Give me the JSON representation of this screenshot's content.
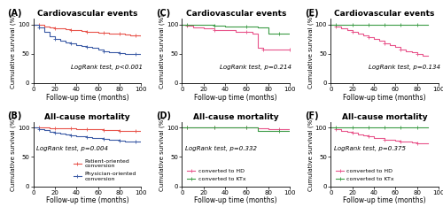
{
  "chart_data": [
    {
      "type": "step",
      "panel_label": "(A)",
      "title": "Cardiovascular events",
      "annotation": "LogRank test, p<0.001",
      "xlabel": "Follow-up time (months)",
      "ylabel": "Cumulative survival (%)",
      "xlim": [
        0,
        100
      ],
      "ylim": [
        0,
        110
      ],
      "xticks": [
        0,
        20,
        40,
        60,
        80,
        100
      ],
      "yticks": [
        0,
        50,
        100
      ],
      "series": [
        {
          "color": "#e8534a",
          "marker": "plus",
          "x": [
            0,
            5,
            10,
            15,
            20,
            25,
            30,
            35,
            40,
            45,
            50,
            55,
            60,
            65,
            70,
            75,
            80,
            85,
            90,
            95,
            100
          ],
          "values": [
            100,
            99,
            97,
            95,
            94,
            93,
            92,
            91,
            90,
            89,
            88,
            87,
            86,
            86,
            85,
            85,
            84,
            83,
            82,
            81,
            80
          ]
        },
        {
          "color": "#3b5ba5",
          "marker": "plus",
          "x": [
            0,
            5,
            10,
            15,
            20,
            25,
            30,
            35,
            40,
            45,
            50,
            55,
            60,
            65,
            70,
            75,
            80,
            85,
            90,
            95,
            100
          ],
          "values": [
            100,
            95,
            88,
            80,
            75,
            72,
            70,
            68,
            65,
            63,
            62,
            60,
            57,
            55,
            53,
            52,
            51,
            50,
            50,
            50,
            50
          ]
        }
      ]
    },
    {
      "type": "step",
      "panel_label": "(C)",
      "title": "Cardiovascular events",
      "annotation": "LogRank test, p=0.214",
      "xlabel": "Follow-up time (months)",
      "ylabel": "Cumulative survival (%)",
      "xlim": [
        0,
        100
      ],
      "ylim": [
        0,
        110
      ],
      "xticks": [
        0,
        20,
        40,
        60,
        80,
        100
      ],
      "yticks": [
        0,
        50,
        100
      ],
      "series": [
        {
          "color": "#e8538a",
          "marker": "plus",
          "x": [
            0,
            5,
            10,
            20,
            30,
            40,
            50,
            60,
            65,
            70,
            75,
            80,
            90,
            100
          ],
          "values": [
            100,
            98,
            95,
            93,
            91,
            90,
            88,
            87,
            85,
            60,
            58,
            57,
            57,
            57
          ]
        },
        {
          "color": "#3b9b45",
          "marker": "plus",
          "x": [
            0,
            5,
            10,
            20,
            30,
            40,
            50,
            60,
            70,
            80,
            90,
            100
          ],
          "values": [
            100,
            100,
            99,
            99,
            98,
            97,
            97,
            96,
            95,
            85,
            85,
            85
          ]
        }
      ]
    },
    {
      "type": "step",
      "panel_label": "(E)",
      "title": "Cardiovascular events",
      "annotation": "LogRank test, p=0.134",
      "xlabel": "Follow-up time (months)",
      "ylabel": "Cumulative survival (%)",
      "xlim": [
        0,
        100
      ],
      "ylim": [
        0,
        110
      ],
      "xticks": [
        0,
        20,
        40,
        60,
        80,
        100
      ],
      "yticks": [
        0,
        50,
        100
      ],
      "series": [
        {
          "color": "#e8538a",
          "marker": "plus",
          "x": [
            0,
            5,
            10,
            15,
            20,
            25,
            30,
            35,
            40,
            45,
            50,
            55,
            60,
            65,
            70,
            75,
            80,
            85,
            90
          ],
          "values": [
            100,
            97,
            93,
            90,
            87,
            85,
            82,
            78,
            75,
            72,
            68,
            65,
            62,
            58,
            55,
            52,
            49,
            47,
            46
          ]
        },
        {
          "color": "#3b9b45",
          "marker": "plus",
          "x": [
            0,
            5,
            10,
            15,
            20,
            25,
            30,
            35,
            40,
            45,
            50,
            55,
            60,
            65,
            70,
            75,
            80,
            85,
            90
          ],
          "values": [
            100,
            100,
            100,
            100,
            100,
            100,
            100,
            100,
            100,
            100,
            100,
            100,
            100,
            100,
            100,
            100,
            100,
            100,
            100
          ]
        }
      ]
    },
    {
      "type": "step",
      "panel_label": "(B)",
      "title": "All-cause mortality",
      "annotation": "LogRank test, p=0.004",
      "xlabel": "Follow-up time (months)",
      "ylabel": "Cumulative survival (%)",
      "xlim": [
        0,
        100
      ],
      "ylim": [
        0,
        110
      ],
      "xticks": [
        0,
        20,
        40,
        60,
        80,
        100
      ],
      "yticks": [
        0,
        50,
        100
      ],
      "legend": "lower right",
      "series": [
        {
          "name": "Patient-oriented\nconversion",
          "color": "#e8534a",
          "marker": "plus",
          "x": [
            0,
            5,
            10,
            15,
            20,
            25,
            30,
            35,
            40,
            45,
            50,
            55,
            60,
            65,
            70,
            75,
            80,
            85,
            90,
            95,
            100
          ],
          "values": [
            100,
            100,
            100,
            99,
            99,
            99,
            99,
            99,
            98,
            98,
            97,
            97,
            97,
            96,
            96,
            96,
            95,
            95,
            95,
            95,
            95
          ]
        },
        {
          "name": "Physician-oriented\nconversion",
          "color": "#3b5ba5",
          "marker": "plus",
          "x": [
            0,
            5,
            10,
            15,
            20,
            25,
            30,
            35,
            40,
            45,
            50,
            55,
            60,
            65,
            70,
            75,
            80,
            85,
            90,
            95,
            100
          ],
          "values": [
            100,
            98,
            96,
            93,
            91,
            90,
            89,
            87,
            86,
            85,
            84,
            83,
            82,
            81,
            80,
            79,
            78,
            77,
            77,
            77,
            77
          ]
        }
      ]
    },
    {
      "type": "step",
      "panel_label": "(D)",
      "title": "All-cause mortality",
      "annotation": "LogRank test, p=0.332",
      "xlabel": "Follow-up time (months)",
      "ylabel": "Cumulative survival (%)",
      "xlim": [
        0,
        100
      ],
      "ylim": [
        0,
        110
      ],
      "xticks": [
        0,
        20,
        40,
        60,
        80,
        100
      ],
      "yticks": [
        0,
        50,
        100
      ],
      "legend": "lower left",
      "series": [
        {
          "name": "converted to HD",
          "color": "#e8538a",
          "marker": "plus",
          "x": [
            0,
            5,
            10,
            20,
            30,
            40,
            50,
            60,
            70,
            80,
            90,
            100
          ],
          "values": [
            100,
            100,
            100,
            100,
            100,
            100,
            100,
            100,
            99,
            98,
            98,
            98
          ]
        },
        {
          "name": "converted to KTx",
          "color": "#3b9b45",
          "marker": "plus",
          "x": [
            0,
            5,
            10,
            20,
            30,
            40,
            50,
            60,
            70,
            80,
            90,
            100
          ],
          "values": [
            100,
            100,
            100,
            100,
            100,
            100,
            100,
            100,
            95,
            94,
            94,
            94
          ]
        }
      ]
    },
    {
      "type": "step",
      "panel_label": "(F)",
      "title": "All-cause mortality",
      "annotation": "LogRank test, p=0.375",
      "xlabel": "Follow-up time (months)",
      "ylabel": "Cumulative survival (%)",
      "xlim": [
        0,
        100
      ],
      "ylim": [
        0,
        110
      ],
      "xticks": [
        0,
        20,
        40,
        60,
        80,
        100
      ],
      "yticks": [
        0,
        50,
        100
      ],
      "legend": "lower left",
      "series": [
        {
          "name": "converted to HD",
          "color": "#e8538a",
          "marker": "plus",
          "x": [
            0,
            5,
            10,
            15,
            20,
            25,
            30,
            35,
            40,
            45,
            50,
            55,
            60,
            65,
            70,
            75,
            80,
            85,
            90
          ],
          "values": [
            100,
            98,
            95,
            93,
            91,
            89,
            87,
            85,
            83,
            82,
            80,
            79,
            78,
            77,
            76,
            75,
            74,
            73,
            73
          ]
        },
        {
          "name": "converted to KTx",
          "color": "#3b9b45",
          "marker": "plus",
          "x": [
            0,
            5,
            10,
            15,
            20,
            25,
            30,
            35,
            40,
            45,
            50,
            55,
            60,
            65,
            70,
            75,
            80,
            85,
            90
          ],
          "values": [
            100,
            100,
            100,
            100,
            100,
            100,
            100,
            100,
            100,
            100,
            100,
            100,
            100,
            100,
            100,
            100,
            100,
            100,
            100
          ]
        }
      ]
    }
  ]
}
